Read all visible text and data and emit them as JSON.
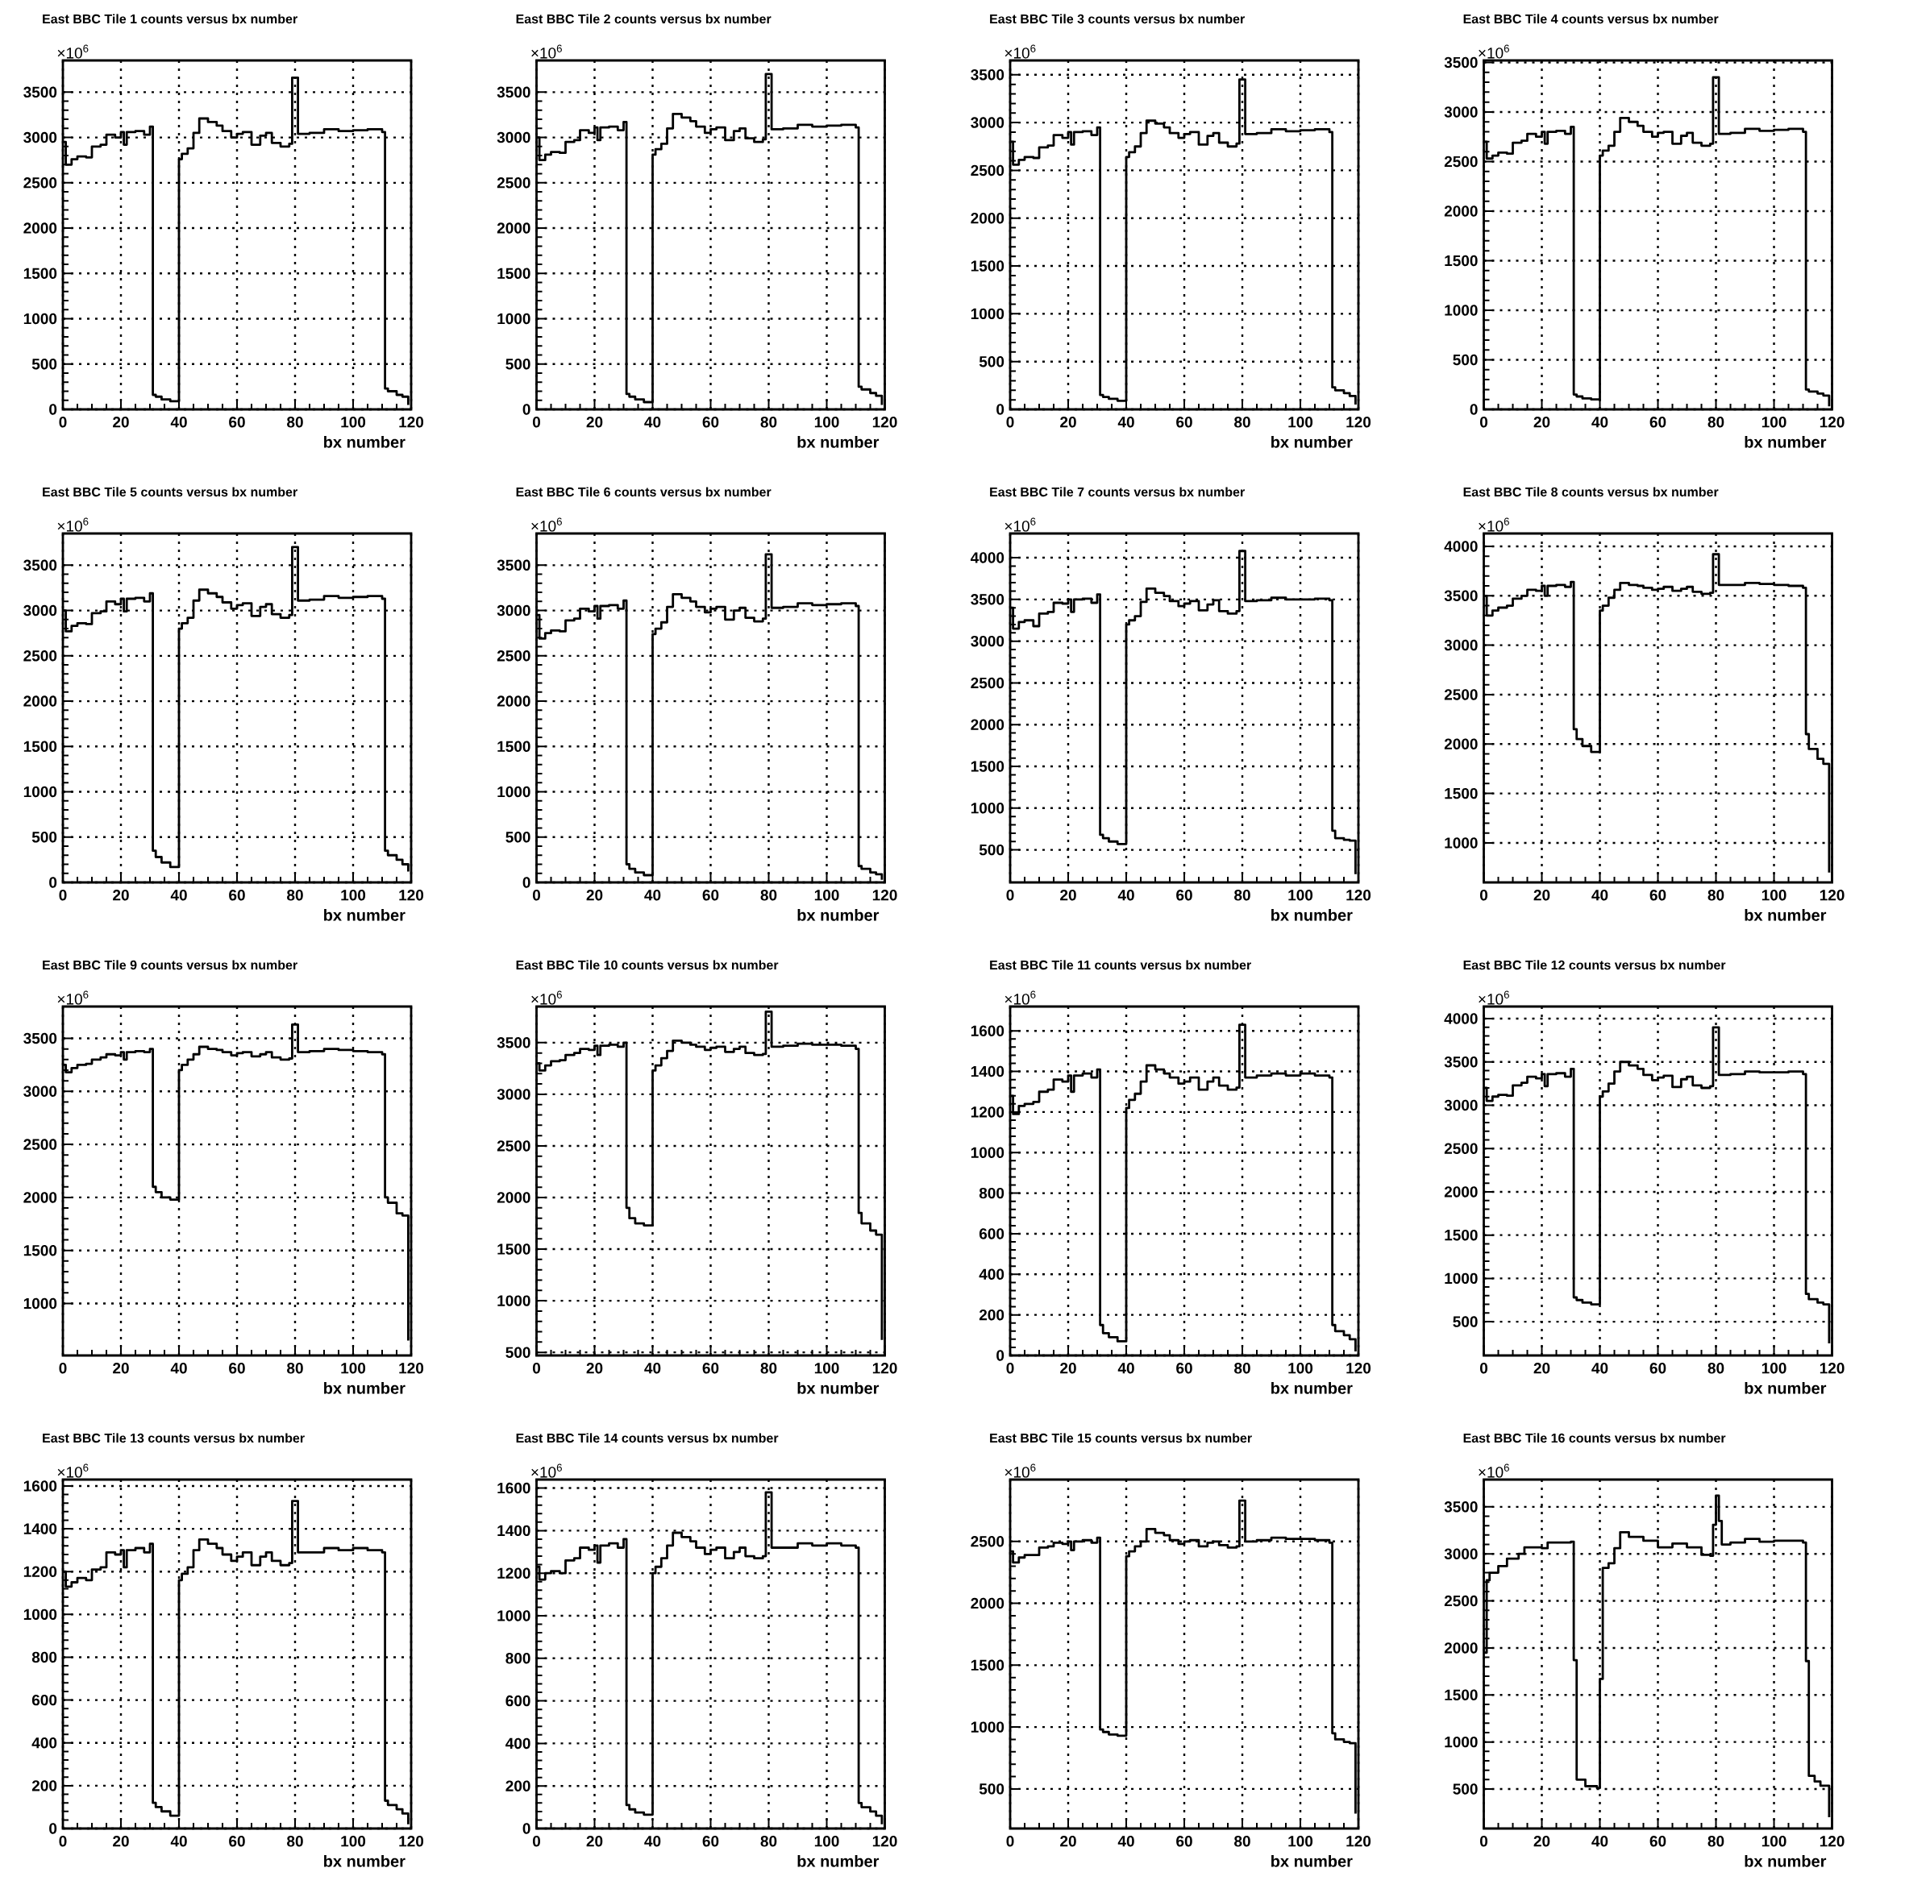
{
  "chart_data": [
    {
      "type": "step",
      "title": "East BBC Tile 1 counts versus bx number",
      "xlabel": "bx number",
      "annotations": [
        "×10$^{6}$"
      ],
      "grid": true,
      "xlim": [
        0,
        120
      ],
      "xticks": [
        0,
        20,
        40,
        60,
        80,
        100,
        120
      ],
      "ylim": [
        0,
        3850
      ],
      "yticks": [
        0,
        500,
        1000,
        1500,
        2000,
        2500,
        3000,
        3500
      ],
      "x": [
        0,
        1,
        3,
        5,
        8,
        10,
        13,
        15,
        18,
        20,
        21,
        22,
        25,
        28,
        30,
        31,
        32,
        34,
        37,
        40,
        41,
        43,
        45,
        47,
        50,
        53,
        55,
        58,
        60,
        62,
        65,
        68,
        70,
        72,
        75,
        78,
        79,
        81,
        85,
        90,
        95,
        100,
        105,
        110,
        111,
        112,
        115,
        117,
        119
      ],
      "values": [
        2950,
        2700,
        2760,
        2790,
        2780,
        2900,
        2920,
        3030,
        3000,
        3060,
        2920,
        3060,
        3070,
        3030,
        3120,
        160,
        140,
        110,
        90,
        2760,
        2820,
        2880,
        3050,
        3210,
        3170,
        3130,
        3070,
        3000,
        3040,
        3060,
        2920,
        3020,
        3050,
        2940,
        2900,
        2930,
        3660,
        3040,
        3050,
        3090,
        3070,
        3080,
        3090,
        3060,
        230,
        200,
        160,
        140,
        50
      ]
    },
    {
      "type": "step",
      "title": "East BBC Tile 2 counts versus bx number",
      "xlabel": "bx number",
      "annotations": [
        "×10$^{6}$"
      ],
      "grid": true,
      "xlim": [
        0,
        120
      ],
      "xticks": [
        0,
        20,
        40,
        60,
        80,
        100,
        120
      ],
      "ylim": [
        0,
        3850
      ],
      "yticks": [
        0,
        500,
        1000,
        1500,
        2000,
        2500,
        3000,
        3500
      ],
      "x": [
        0,
        1,
        3,
        5,
        8,
        10,
        13,
        15,
        18,
        20,
        21,
        22,
        25,
        28,
        30,
        31,
        32,
        34,
        37,
        40,
        41,
        43,
        45,
        47,
        50,
        53,
        55,
        58,
        60,
        62,
        65,
        68,
        70,
        72,
        75,
        78,
        79,
        81,
        85,
        90,
        95,
        100,
        105,
        110,
        111,
        112,
        115,
        117,
        119
      ],
      "values": [
        3000,
        2750,
        2810,
        2840,
        2830,
        2950,
        2970,
        3080,
        3050,
        3110,
        2970,
        3110,
        3120,
        3080,
        3170,
        170,
        140,
        110,
        80,
        2810,
        2870,
        2930,
        3100,
        3260,
        3220,
        3180,
        3120,
        3050,
        3090,
        3110,
        2970,
        3070,
        3100,
        2990,
        2950,
        2980,
        3700,
        3090,
        3100,
        3140,
        3120,
        3130,
        3140,
        3110,
        250,
        220,
        180,
        150,
        50
      ]
    },
    {
      "type": "step",
      "title": "East BBC Tile 3 counts versus bx number",
      "xlabel": "bx number",
      "annotations": [
        "×10$^{6}$"
      ],
      "grid": true,
      "xlim": [
        0,
        120
      ],
      "xticks": [
        0,
        20,
        40,
        60,
        80,
        100,
        120
      ],
      "ylim": [
        0,
        3650
      ],
      "yticks": [
        0,
        500,
        1000,
        1500,
        2000,
        2500,
        3000,
        3500
      ],
      "x": [
        0,
        1,
        3,
        5,
        8,
        10,
        13,
        15,
        18,
        20,
        21,
        22,
        25,
        28,
        30,
        31,
        32,
        34,
        37,
        40,
        41,
        43,
        45,
        47,
        50,
        53,
        55,
        58,
        60,
        62,
        65,
        68,
        70,
        72,
        75,
        78,
        79,
        81,
        85,
        90,
        95,
        100,
        105,
        110,
        111,
        112,
        115,
        117,
        119
      ],
      "values": [
        2800,
        2560,
        2610,
        2640,
        2630,
        2740,
        2760,
        2870,
        2840,
        2900,
        2770,
        2900,
        2910,
        2870,
        2950,
        150,
        130,
        110,
        90,
        2640,
        2690,
        2750,
        2890,
        3020,
        2990,
        2950,
        2890,
        2840,
        2880,
        2900,
        2770,
        2860,
        2890,
        2790,
        2750,
        2780,
        3450,
        2880,
        2890,
        2930,
        2910,
        2920,
        2930,
        2900,
        230,
        200,
        170,
        140,
        50
      ]
    },
    {
      "type": "step",
      "title": "East BBC Tile 4 counts versus bx number",
      "xlabel": "bx number",
      "annotations": [
        "×10$^{6}$"
      ],
      "grid": true,
      "xlim": [
        0,
        120
      ],
      "xticks": [
        0,
        20,
        40,
        60,
        80,
        100,
        120
      ],
      "ylim": [
        0,
        3520
      ],
      "yticks": [
        0,
        500,
        1000,
        1500,
        2000,
        2500,
        3000,
        3500
      ],
      "x": [
        0,
        1,
        3,
        5,
        8,
        10,
        13,
        15,
        18,
        20,
        21,
        22,
        25,
        28,
        30,
        31,
        32,
        34,
        37,
        40,
        41,
        43,
        45,
        47,
        50,
        53,
        55,
        58,
        60,
        62,
        65,
        68,
        70,
        72,
        75,
        78,
        79,
        81,
        85,
        90,
        95,
        100,
        105,
        110,
        111,
        112,
        115,
        117,
        119
      ],
      "values": [
        2700,
        2530,
        2560,
        2590,
        2580,
        2690,
        2710,
        2780,
        2750,
        2800,
        2680,
        2800,
        2810,
        2780,
        2850,
        150,
        130,
        110,
        100,
        2560,
        2610,
        2660,
        2800,
        2940,
        2900,
        2860,
        2800,
        2750,
        2790,
        2800,
        2680,
        2760,
        2790,
        2690,
        2660,
        2680,
        3350,
        2780,
        2790,
        2830,
        2810,
        2820,
        2830,
        2800,
        200,
        180,
        160,
        140,
        30
      ]
    },
    {
      "type": "step",
      "title": "East BBC Tile 5 counts versus bx number",
      "xlabel": "bx number",
      "annotations": [
        "×10$^{6}$"
      ],
      "grid": true,
      "xlim": [
        0,
        120
      ],
      "xticks": [
        0,
        20,
        40,
        60,
        80,
        100,
        120
      ],
      "ylim": [
        0,
        3850
      ],
      "yticks": [
        0,
        500,
        1000,
        1500,
        2000,
        2500,
        3000,
        3500
      ],
      "x": [
        0,
        1,
        3,
        5,
        8,
        10,
        13,
        15,
        18,
        20,
        21,
        22,
        25,
        28,
        30,
        31,
        32,
        34,
        37,
        40,
        41,
        43,
        45,
        47,
        50,
        53,
        55,
        58,
        60,
        62,
        65,
        68,
        70,
        72,
        75,
        78,
        79,
        81,
        85,
        90,
        95,
        100,
        105,
        110,
        111,
        112,
        115,
        117,
        119
      ],
      "values": [
        3000,
        2770,
        2830,
        2860,
        2850,
        2970,
        2990,
        3100,
        3070,
        3130,
        2990,
        3130,
        3140,
        3100,
        3190,
        350,
        280,
        220,
        170,
        2800,
        2860,
        2920,
        3110,
        3230,
        3190,
        3150,
        3090,
        3020,
        3060,
        3080,
        2940,
        3040,
        3070,
        2960,
        2920,
        2950,
        3700,
        3110,
        3120,
        3160,
        3140,
        3150,
        3160,
        3130,
        350,
        300,
        250,
        200,
        120
      ]
    },
    {
      "type": "step",
      "title": "East BBC Tile 6 counts versus bx number",
      "xlabel": "bx number",
      "annotations": [
        "×10$^{6}$"
      ],
      "grid": true,
      "xlim": [
        0,
        120
      ],
      "xticks": [
        0,
        20,
        40,
        60,
        80,
        100,
        120
      ],
      "ylim": [
        0,
        3850
      ],
      "yticks": [
        0,
        500,
        1000,
        1500,
        2000,
        2500,
        3000,
        3500
      ],
      "x": [
        0,
        1,
        3,
        5,
        8,
        10,
        13,
        15,
        18,
        20,
        21,
        22,
        25,
        28,
        30,
        31,
        32,
        34,
        37,
        40,
        41,
        43,
        45,
        47,
        50,
        53,
        55,
        58,
        60,
        62,
        65,
        68,
        70,
        72,
        75,
        78,
        79,
        81,
        85,
        90,
        95,
        100,
        105,
        110,
        111,
        112,
        115,
        117,
        119
      ],
      "values": [
        2950,
        2690,
        2750,
        2780,
        2770,
        2890,
        2910,
        3020,
        2990,
        3050,
        2910,
        3050,
        3060,
        3020,
        3110,
        200,
        150,
        110,
        80,
        2740,
        2800,
        2870,
        3040,
        3180,
        3140,
        3100,
        3040,
        2980,
        3020,
        3040,
        2900,
        3000,
        3030,
        2920,
        2880,
        2910,
        3620,
        3030,
        3040,
        3080,
        3060,
        3070,
        3080,
        3050,
        180,
        150,
        110,
        90,
        30
      ]
    },
    {
      "type": "step",
      "title": "East BBC Tile 7 counts versus bx number",
      "xlabel": "bx number",
      "annotations": [
        "×10$^{6}$"
      ],
      "grid": true,
      "xlim": [
        0,
        120
      ],
      "xticks": [
        0,
        20,
        40,
        60,
        80,
        100,
        120
      ],
      "ylim": [
        110,
        4290
      ],
      "yticks": [
        500,
        1000,
        1500,
        2000,
        2500,
        3000,
        3500,
        4000
      ],
      "x": [
        0,
        1,
        3,
        5,
        8,
        10,
        13,
        15,
        18,
        20,
        21,
        22,
        25,
        28,
        30,
        31,
        32,
        34,
        37,
        40,
        41,
        43,
        45,
        47,
        50,
        53,
        55,
        58,
        60,
        62,
        65,
        68,
        70,
        72,
        75,
        78,
        79,
        81,
        85,
        90,
        95,
        100,
        105,
        110,
        111,
        112,
        115,
        117,
        119
      ],
      "values": [
        3400,
        3150,
        3230,
        3250,
        3180,
        3330,
        3350,
        3460,
        3450,
        3500,
        3350,
        3500,
        3510,
        3460,
        3560,
        680,
        640,
        600,
        570,
        3200,
        3250,
        3300,
        3470,
        3630,
        3580,
        3540,
        3480,
        3420,
        3450,
        3480,
        3370,
        3440,
        3490,
        3360,
        3330,
        3360,
        4080,
        3480,
        3490,
        3520,
        3500,
        3500,
        3510,
        3490,
        730,
        640,
        620,
        610,
        210
      ]
    },
    {
      "type": "step",
      "title": "East BBC Tile 8 counts versus bx number",
      "xlabel": "bx number",
      "annotations": [
        "×10$^{6}$"
      ],
      "grid": true,
      "xlim": [
        0,
        120
      ],
      "xticks": [
        0,
        20,
        40,
        60,
        80,
        100,
        120
      ],
      "ylim": [
        600,
        4130
      ],
      "yticks": [
        1000,
        1500,
        2000,
        2500,
        3000,
        3500,
        4000
      ],
      "x": [
        0,
        1,
        3,
        5,
        8,
        10,
        13,
        15,
        18,
        20,
        21,
        22,
        25,
        28,
        30,
        31,
        32,
        34,
        37,
        40,
        41,
        43,
        45,
        47,
        50,
        53,
        55,
        58,
        60,
        62,
        65,
        68,
        70,
        72,
        75,
        78,
        79,
        81,
        85,
        90,
        95,
        100,
        105,
        110,
        111,
        112,
        115,
        117,
        119
      ],
      "values": [
        3500,
        3300,
        3350,
        3380,
        3400,
        3470,
        3500,
        3560,
        3550,
        3600,
        3500,
        3600,
        3610,
        3590,
        3640,
        2150,
        2050,
        1980,
        1920,
        3350,
        3400,
        3480,
        3560,
        3630,
        3610,
        3600,
        3580,
        3560,
        3570,
        3590,
        3550,
        3570,
        3590,
        3540,
        3520,
        3530,
        3920,
        3610,
        3610,
        3630,
        3620,
        3610,
        3600,
        3580,
        2100,
        1950,
        1850,
        1800,
        700
      ]
    },
    {
      "type": "step",
      "title": "East BBC Tile 9 counts versus bx number",
      "xlabel": "bx number",
      "annotations": [
        "×10$^{6}$"
      ],
      "grid": true,
      "xlim": [
        0,
        120
      ],
      "xticks": [
        0,
        20,
        40,
        60,
        80,
        100,
        120
      ],
      "ylim": [
        510,
        3800
      ],
      "yticks": [
        1000,
        1500,
        2000,
        2500,
        3000,
        3500
      ],
      "x": [
        0,
        1,
        3,
        5,
        8,
        10,
        13,
        15,
        18,
        20,
        21,
        22,
        25,
        28,
        30,
        31,
        32,
        34,
        37,
        40,
        41,
        43,
        45,
        47,
        50,
        53,
        55,
        58,
        60,
        62,
        65,
        68,
        70,
        72,
        75,
        78,
        79,
        81,
        85,
        90,
        95,
        100,
        105,
        110,
        111,
        112,
        115,
        117,
        119
      ],
      "values": [
        3250,
        3180,
        3220,
        3250,
        3260,
        3300,
        3320,
        3350,
        3340,
        3370,
        3300,
        3370,
        3380,
        3370,
        3400,
        2100,
        2050,
        2000,
        1980,
        3200,
        3250,
        3300,
        3350,
        3420,
        3400,
        3390,
        3370,
        3340,
        3360,
        3370,
        3330,
        3350,
        3370,
        3320,
        3300,
        3310,
        3630,
        3370,
        3380,
        3400,
        3390,
        3380,
        3370,
        3350,
        2000,
        1950,
        1850,
        1830,
        650
      ]
    },
    {
      "type": "step",
      "title": "East BBC Tile 10 counts versus bx number",
      "xlabel": "bx number",
      "annotations": [
        "×10$^{6}$"
      ],
      "grid": true,
      "xlim": [
        0,
        120
      ],
      "xticks": [
        0,
        20,
        40,
        60,
        80,
        100,
        120
      ],
      "ylim": [
        470,
        3850
      ],
      "yticks": [
        500,
        1000,
        1500,
        2000,
        2500,
        3000,
        3500
      ],
      "x": [
        0,
        1,
        3,
        5,
        8,
        10,
        13,
        15,
        18,
        20,
        21,
        22,
        25,
        28,
        30,
        31,
        32,
        34,
        37,
        40,
        41,
        43,
        45,
        47,
        50,
        53,
        55,
        58,
        60,
        62,
        65,
        68,
        70,
        72,
        75,
        78,
        79,
        81,
        85,
        90,
        95,
        100,
        105,
        110,
        111,
        112,
        115,
        117,
        119
      ],
      "values": [
        3300,
        3230,
        3280,
        3320,
        3330,
        3380,
        3400,
        3440,
        3430,
        3470,
        3380,
        3470,
        3480,
        3460,
        3500,
        1900,
        1800,
        1750,
        1730,
        3230,
        3280,
        3350,
        3420,
        3520,
        3500,
        3480,
        3460,
        3430,
        3450,
        3460,
        3410,
        3440,
        3460,
        3400,
        3380,
        3390,
        3800,
        3460,
        3470,
        3490,
        3480,
        3480,
        3470,
        3440,
        1850,
        1750,
        1680,
        1640,
        620
      ]
    },
    {
      "type": "step",
      "title": "East BBC Tile 11 counts versus bx number",
      "xlabel": "bx number",
      "annotations": [
        "×10$^{6}$"
      ],
      "grid": true,
      "xlim": [
        0,
        120
      ],
      "xticks": [
        0,
        20,
        40,
        60,
        80,
        100,
        120
      ],
      "ylim": [
        0,
        1720
      ],
      "yticks": [
        0,
        200,
        400,
        600,
        800,
        1000,
        1200,
        1400,
        1600
      ],
      "x": [
        0,
        1,
        3,
        5,
        8,
        10,
        13,
        15,
        18,
        20,
        21,
        22,
        25,
        28,
        30,
        31,
        32,
        34,
        37,
        40,
        41,
        43,
        45,
        47,
        50,
        53,
        55,
        58,
        60,
        62,
        65,
        68,
        70,
        72,
        75,
        78,
        79,
        81,
        85,
        90,
        95,
        100,
        105,
        110,
        111,
        112,
        115,
        117,
        119
      ],
      "values": [
        1280,
        1190,
        1230,
        1240,
        1250,
        1300,
        1310,
        1360,
        1350,
        1380,
        1300,
        1380,
        1390,
        1370,
        1410,
        150,
        110,
        90,
        70,
        1220,
        1260,
        1290,
        1350,
        1430,
        1410,
        1390,
        1370,
        1340,
        1350,
        1370,
        1310,
        1350,
        1370,
        1330,
        1310,
        1320,
        1630,
        1370,
        1380,
        1390,
        1380,
        1390,
        1380,
        1370,
        150,
        120,
        100,
        80,
        20
      ]
    },
    {
      "type": "step",
      "title": "East BBC Tile 12 counts versus bx number",
      "xlabel": "bx number",
      "annotations": [
        "×10$^{6}$"
      ],
      "grid": true,
      "xlim": [
        0,
        120
      ],
      "xticks": [
        0,
        20,
        40,
        60,
        80,
        100,
        120
      ],
      "ylim": [
        110,
        4140
      ],
      "yticks": [
        500,
        1000,
        1500,
        2000,
        2500,
        3000,
        3500,
        4000
      ],
      "x": [
        0,
        1,
        3,
        5,
        8,
        10,
        13,
        15,
        18,
        20,
        21,
        22,
        25,
        28,
        30,
        31,
        32,
        34,
        37,
        40,
        41,
        43,
        45,
        47,
        50,
        53,
        55,
        58,
        60,
        62,
        65,
        68,
        70,
        72,
        75,
        78,
        79,
        81,
        85,
        90,
        95,
        100,
        105,
        110,
        111,
        112,
        115,
        117,
        119
      ],
      "values": [
        3200,
        3050,
        3100,
        3120,
        3110,
        3230,
        3260,
        3330,
        3310,
        3360,
        3220,
        3360,
        3370,
        3330,
        3420,
        780,
        750,
        720,
        700,
        3100,
        3160,
        3250,
        3390,
        3500,
        3460,
        3420,
        3350,
        3290,
        3320,
        3340,
        3210,
        3300,
        3330,
        3230,
        3200,
        3220,
        3900,
        3350,
        3360,
        3390,
        3380,
        3380,
        3390,
        3360,
        820,
        760,
        720,
        700,
        250
      ]
    },
    {
      "type": "step",
      "title": "East BBC Tile 13 counts versus bx number",
      "xlabel": "bx number",
      "annotations": [
        "×10$^{6}$"
      ],
      "grid": true,
      "xlim": [
        0,
        120
      ],
      "xticks": [
        0,
        20,
        40,
        60,
        80,
        100,
        120
      ],
      "ylim": [
        0,
        1630
      ],
      "yticks": [
        0,
        200,
        400,
        600,
        800,
        1000,
        1200,
        1400,
        1600
      ],
      "x": [
        0,
        1,
        3,
        5,
        8,
        10,
        13,
        15,
        18,
        20,
        21,
        22,
        25,
        28,
        30,
        31,
        32,
        34,
        37,
        40,
        41,
        43,
        45,
        47,
        50,
        53,
        55,
        58,
        60,
        62,
        65,
        68,
        70,
        72,
        75,
        78,
        79,
        81,
        85,
        90,
        95,
        100,
        105,
        110,
        111,
        112,
        115,
        117,
        119
      ],
      "values": [
        1200,
        1130,
        1150,
        1170,
        1160,
        1210,
        1220,
        1290,
        1280,
        1300,
        1220,
        1300,
        1310,
        1290,
        1330,
        120,
        100,
        80,
        60,
        1160,
        1190,
        1220,
        1300,
        1350,
        1330,
        1310,
        1280,
        1250,
        1270,
        1290,
        1230,
        1270,
        1290,
        1250,
        1230,
        1240,
        1530,
        1290,
        1290,
        1310,
        1300,
        1310,
        1300,
        1290,
        130,
        110,
        90,
        70,
        20
      ]
    },
    {
      "type": "step",
      "title": "East BBC Tile 14 counts versus bx number",
      "xlabel": "bx number",
      "annotations": [
        "×10$^{6}$"
      ],
      "grid": true,
      "xlim": [
        0,
        120
      ],
      "xticks": [
        0,
        20,
        40,
        60,
        80,
        100,
        120
      ],
      "ylim": [
        0,
        1640
      ],
      "yticks": [
        0,
        200,
        400,
        600,
        800,
        1000,
        1200,
        1400,
        1600
      ],
      "x": [
        0,
        1,
        3,
        5,
        8,
        10,
        13,
        15,
        18,
        20,
        21,
        22,
        25,
        28,
        30,
        31,
        32,
        34,
        37,
        40,
        41,
        43,
        45,
        47,
        50,
        53,
        55,
        58,
        60,
        62,
        65,
        68,
        70,
        72,
        75,
        78,
        79,
        81,
        85,
        90,
        95,
        100,
        105,
        110,
        111,
        112,
        115,
        117,
        119
      ],
      "values": [
        1230,
        1170,
        1200,
        1210,
        1200,
        1260,
        1270,
        1320,
        1310,
        1330,
        1250,
        1330,
        1340,
        1320,
        1360,
        110,
        90,
        75,
        65,
        1200,
        1230,
        1270,
        1330,
        1390,
        1370,
        1350,
        1320,
        1290,
        1310,
        1320,
        1270,
        1300,
        1320,
        1280,
        1270,
        1280,
        1580,
        1320,
        1320,
        1340,
        1330,
        1340,
        1330,
        1320,
        120,
        100,
        80,
        60,
        20
      ]
    },
    {
      "type": "step",
      "title": "East BBC Tile 15 counts versus bx number",
      "xlabel": "bx number",
      "annotations": [
        "×10$^{6}$"
      ],
      "grid": true,
      "xlim": [
        0,
        120
      ],
      "xticks": [
        0,
        20,
        40,
        60,
        80,
        100,
        120
      ],
      "ylim": [
        180,
        3000
      ],
      "yticks": [
        500,
        1000,
        1500,
        2000,
        2500
      ],
      "x": [
        0,
        1,
        3,
        5,
        8,
        10,
        13,
        15,
        18,
        20,
        21,
        22,
        25,
        28,
        30,
        31,
        32,
        34,
        37,
        40,
        41,
        43,
        45,
        47,
        50,
        53,
        55,
        58,
        60,
        62,
        65,
        68,
        70,
        72,
        75,
        78,
        79,
        81,
        85,
        90,
        95,
        100,
        105,
        110,
        111,
        112,
        115,
        117,
        119
      ],
      "values": [
        2420,
        2330,
        2370,
        2390,
        2390,
        2450,
        2460,
        2490,
        2480,
        2500,
        2430,
        2500,
        2510,
        2490,
        2530,
        980,
        960,
        940,
        930,
        2380,
        2420,
        2460,
        2500,
        2600,
        2570,
        2550,
        2510,
        2480,
        2500,
        2510,
        2460,
        2490,
        2500,
        2470,
        2450,
        2460,
        2830,
        2500,
        2510,
        2530,
        2520,
        2520,
        2510,
        2490,
        950,
        900,
        880,
        870,
        300
      ]
    },
    {
      "type": "step",
      "title": "East BBC Tile 16 counts versus bx number",
      "xlabel": "bx number",
      "annotations": [
        "×10$^{6}$"
      ],
      "grid": true,
      "xlim": [
        0,
        120
      ],
      "xticks": [
        0,
        20,
        40,
        60,
        80,
        100,
        120
      ],
      "ylim": [
        80,
        3790
      ],
      "yticks": [
        500,
        1000,
        1500,
        2000,
        2500,
        3000,
        3500
      ],
      "x": [
        0,
        1,
        2,
        5,
        8,
        12,
        14,
        20,
        22,
        30,
        31,
        32,
        35,
        39,
        40,
        41,
        43,
        45,
        47,
        50,
        55,
        60,
        65,
        70,
        75,
        78,
        79,
        80,
        81,
        82,
        85,
        90,
        95,
        100,
        105,
        110,
        111,
        112,
        114,
        116,
        119
      ],
      "values": [
        1950,
        2720,
        2800,
        2870,
        2950,
        3000,
        3070,
        3060,
        3120,
        3130,
        1870,
        600,
        530,
        510,
        1670,
        2850,
        2900,
        3060,
        3230,
        3180,
        3140,
        3070,
        3110,
        3070,
        2990,
        2980,
        3310,
        3620,
        3350,
        3100,
        3120,
        3160,
        3130,
        3140,
        3140,
        3120,
        1860,
        640,
        580,
        535,
        200
      ]
    }
  ]
}
